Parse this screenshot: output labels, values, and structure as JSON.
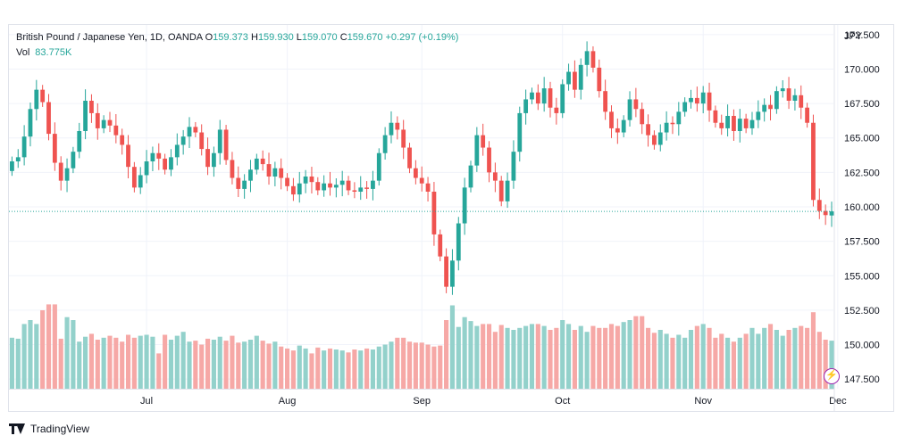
{
  "legend": {
    "symbol": "British Pound / Japanese Yen, 1D, OANDA",
    "open_key": "O",
    "open": "159.373",
    "high_key": "H",
    "high": "159.930",
    "low_key": "L",
    "low": "159.070",
    "close_key": "C",
    "close": "159.670",
    "change": "+0.297 (+0.19%)",
    "vol_key": "Vol",
    "vol": "83.775K"
  },
  "currency": "JPY",
  "brand": {
    "name": "TradingView",
    "logo_icon": "tradingview-logo-icon"
  },
  "colors": {
    "up": "#26a69a",
    "down": "#ef5350",
    "vol_up": "#93d1cb",
    "vol_down": "#f6a8a6",
    "last_line": "#26a69a"
  },
  "chart_data": {
    "type": "candlestick",
    "ylabel": "JPY",
    "ylim": [
      146.8,
      173.2
    ],
    "y_ticks": [
      "147.500",
      "150.000",
      "152.500",
      "155.000",
      "157.500",
      "160.000",
      "162.500",
      "165.000",
      "167.500",
      "170.000",
      "172.500"
    ],
    "month_labels": [
      {
        "label": "Jul",
        "index": 22
      },
      {
        "label": "Aug",
        "index": 45
      },
      {
        "label": "Sep",
        "index": 67
      },
      {
        "label": "Oct",
        "index": 90
      },
      {
        "label": "Nov",
        "index": 113
      },
      {
        "label": "Dec",
        "index": 135
      }
    ],
    "last_price": 159.67,
    "close": [
      163.3,
      163.6,
      165.1,
      167.1,
      168.5,
      167.6,
      165.3,
      163.2,
      161.9,
      162.8,
      164.0,
      165.5,
      167.7,
      166.8,
      165.7,
      166.3,
      165.9,
      165.2,
      164.5,
      162.9,
      161.4,
      162.3,
      163.3,
      163.9,
      163.5,
      162.7,
      163.6,
      164.5,
      165.1,
      165.8,
      165.4,
      164.2,
      162.9,
      163.9,
      165.6,
      163.4,
      162.1,
      161.3,
      161.9,
      162.7,
      163.5,
      163.1,
      162.2,
      162.8,
      162.1,
      161.5,
      160.9,
      161.7,
      162.2,
      161.8,
      161.2,
      161.7,
      161.4,
      161.6,
      161.9,
      161.2,
      161.1,
      161.4,
      161.3,
      161.9,
      163.9,
      165.2,
      166.1,
      165.6,
      164.3,
      162.8,
      162.1,
      161.7,
      161.1,
      158.0,
      156.4,
      154.2,
      156.1,
      158.8,
      161.4,
      163.0,
      165.2,
      164.3,
      162.5,
      161.9,
      160.4,
      161.9,
      164.0,
      166.8,
      167.8,
      168.3,
      167.5,
      168.6,
      167.2,
      166.8,
      168.9,
      169.8,
      168.5,
      170.3,
      171.3,
      170.1,
      168.4,
      166.9,
      165.7,
      165.4,
      166.3,
      167.8,
      167.1,
      166.0,
      165.2,
      164.5,
      165.4,
      166.1,
      166.0,
      166.9,
      167.6,
      167.9,
      167.5,
      168.3,
      167.0,
      166.1,
      165.7,
      166.6,
      165.5,
      166.4,
      165.7,
      166.3,
      166.9,
      167.4,
      167.1,
      168.4,
      168.6,
      167.7,
      168.1,
      167.2,
      166.1,
      160.5,
      159.7,
      159.4,
      159.67
    ],
    "open": [
      162.6,
      163.3,
      163.6,
      165.1,
      167.1,
      168.5,
      167.6,
      165.3,
      163.2,
      161.9,
      162.8,
      164.0,
      165.5,
      167.7,
      166.8,
      165.7,
      166.3,
      165.9,
      165.2,
      164.5,
      162.9,
      161.4,
      162.3,
      163.3,
      163.9,
      163.5,
      162.7,
      163.6,
      164.5,
      165.1,
      165.8,
      165.4,
      164.2,
      162.9,
      163.9,
      165.6,
      163.4,
      162.1,
      161.3,
      161.9,
      162.7,
      163.5,
      163.1,
      162.2,
      162.8,
      162.1,
      161.5,
      160.9,
      161.7,
      162.2,
      161.8,
      161.2,
      161.7,
      161.4,
      161.6,
      161.9,
      161.2,
      161.1,
      161.4,
      161.3,
      161.9,
      163.9,
      165.2,
      166.1,
      165.6,
      164.3,
      162.8,
      162.1,
      161.7,
      161.1,
      158.0,
      156.4,
      154.2,
      156.1,
      158.8,
      161.4,
      163.0,
      165.2,
      164.3,
      162.5,
      161.9,
      160.4,
      161.9,
      164.0,
      166.8,
      167.8,
      168.3,
      167.5,
      168.6,
      167.2,
      166.8,
      168.9,
      169.8,
      168.5,
      170.3,
      171.3,
      170.1,
      168.4,
      166.9,
      165.7,
      165.4,
      166.3,
      167.8,
      167.1,
      166.0,
      165.2,
      164.5,
      165.4,
      166.1,
      166.0,
      166.9,
      167.6,
      167.9,
      167.5,
      168.3,
      167.0,
      166.1,
      165.7,
      166.6,
      165.5,
      166.4,
      165.7,
      166.3,
      166.9,
      167.4,
      167.1,
      168.4,
      168.6,
      167.7,
      168.1,
      167.2,
      166.1,
      160.5,
      159.7,
      159.373
    ],
    "volume_relative": [
      0.52,
      0.51,
      0.66,
      0.7,
      0.66,
      0.8,
      0.86,
      0.86,
      0.51,
      0.73,
      0.7,
      0.48,
      0.53,
      0.56,
      0.5,
      0.52,
      0.54,
      0.52,
      0.48,
      0.55,
      0.52,
      0.54,
      0.55,
      0.53,
      0.36,
      0.55,
      0.5,
      0.54,
      0.58,
      0.48,
      0.49,
      0.45,
      0.51,
      0.5,
      0.53,
      0.49,
      0.54,
      0.47,
      0.48,
      0.5,
      0.54,
      0.49,
      0.46,
      0.48,
      0.43,
      0.41,
      0.39,
      0.44,
      0.41,
      0.36,
      0.42,
      0.39,
      0.41,
      0.4,
      0.39,
      0.37,
      0.4,
      0.39,
      0.41,
      0.4,
      0.43,
      0.45,
      0.48,
      0.52,
      0.52,
      0.48,
      0.47,
      0.47,
      0.45,
      0.43,
      0.44,
      0.7,
      0.85,
      0.63,
      0.73,
      0.69,
      0.64,
      0.66,
      0.66,
      0.58,
      0.65,
      0.62,
      0.6,
      0.62,
      0.64,
      0.66,
      0.66,
      0.64,
      0.6,
      0.62,
      0.7,
      0.66,
      0.6,
      0.64,
      0.58,
      0.64,
      0.62,
      0.62,
      0.66,
      0.64,
      0.68,
      0.7,
      0.74,
      0.74,
      0.62,
      0.57,
      0.6,
      0.56,
      0.52,
      0.55,
      0.52,
      0.6,
      0.64,
      0.66,
      0.62,
      0.52,
      0.56,
      0.52,
      0.48,
      0.52,
      0.56,
      0.62,
      0.56,
      0.62,
      0.66,
      0.6,
      0.54,
      0.6,
      0.62,
      0.64,
      0.62,
      0.78,
      0.58,
      0.5,
      0.49
    ]
  }
}
